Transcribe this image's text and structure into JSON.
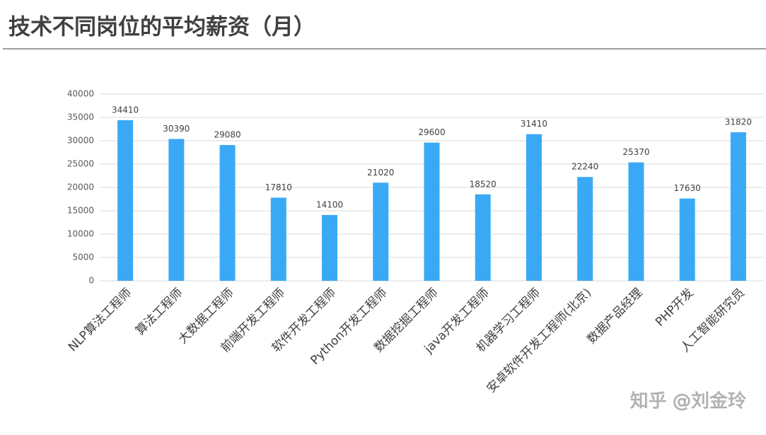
{
  "chart_data": {
    "type": "bar",
    "title": "技术不同岗位的平均薪资（月）",
    "categories": [
      "NLP算法工程师",
      "算法工程师",
      "大数据工程师",
      "前端开发工程师",
      "软件开发工程师",
      "Python开发工程师",
      "数据挖掘工程师",
      "java开发工程师",
      "机器学习工程师",
      "安卓软件开发工程师(北京)",
      "数据产品经理",
      "PHP开发",
      "人工智能研究员"
    ],
    "values": [
      34410,
      30390,
      29080,
      17810,
      14100,
      21020,
      29600,
      18520,
      31410,
      22240,
      25370,
      17630,
      31820
    ],
    "color": "#3aa9f5",
    "ylim": [
      0,
      40000
    ],
    "yticks": [
      0,
      5000,
      10000,
      15000,
      20000,
      25000,
      30000,
      35000,
      40000
    ],
    "grid": true,
    "watermark": "知乎 @刘金玲"
  }
}
